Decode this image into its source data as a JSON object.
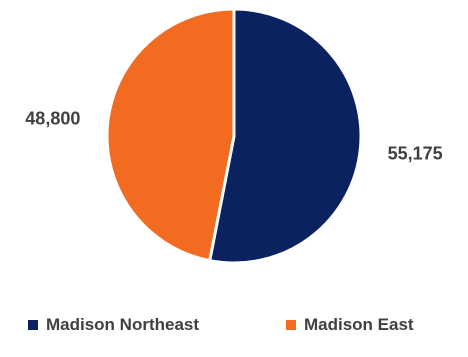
{
  "chart_data": {
    "type": "pie",
    "title": "",
    "series": [
      {
        "name": "Madison Northeast",
        "value": 55175,
        "label": "55,175",
        "color": "#0B2260"
      },
      {
        "name": "Madison East",
        "value": 48800,
        "label": "48,800",
        "color": "#F26B21"
      }
    ],
    "start_angle_deg": 0,
    "direction": "clockwise",
    "slice_separator_color": "#ffffff",
    "data_labels": "outside",
    "legend": {
      "position": "bottom"
    }
  }
}
